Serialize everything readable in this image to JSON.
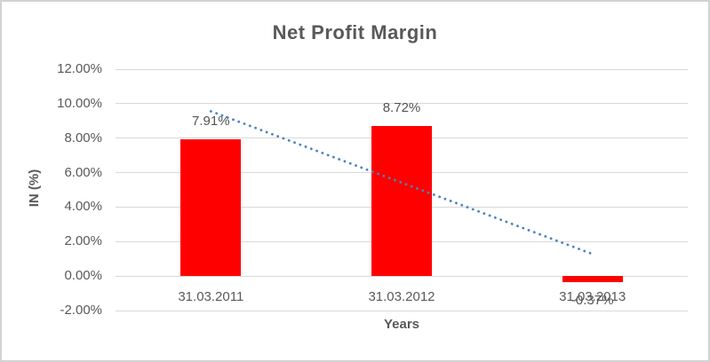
{
  "chart_data": {
    "type": "bar",
    "title": "Net Profit Margin",
    "xlabel": "Years",
    "ylabel": "IN (%)",
    "categories": [
      "31.03.2011",
      "31.03.2012",
      "31.03.2013"
    ],
    "values": [
      7.91,
      8.72,
      -0.37
    ],
    "data_labels": [
      "7.91%",
      "8.72%",
      "-0.37%"
    ],
    "ylim": [
      -2,
      12
    ],
    "y_ticks": [
      {
        "value": 12,
        "label": "12.00%"
      },
      {
        "value": 10,
        "label": "10.00%"
      },
      {
        "value": 8,
        "label": "8.00%"
      },
      {
        "value": 6,
        "label": "6.00%"
      },
      {
        "value": 4,
        "label": "4.00%"
      },
      {
        "value": 2,
        "label": "2.00%"
      },
      {
        "value": 0,
        "label": "0.00%"
      },
      {
        "value": -2,
        "label": "-2.00%"
      }
    ],
    "grid": true,
    "legend": "none",
    "trendline": {
      "type": "linear",
      "style": "dotted",
      "start_value": 9.56,
      "end_value": 1.28,
      "start_category_index": 0,
      "end_category_index": 2
    },
    "colors": {
      "bar": "#ff0000",
      "trendline": "#4e81bd",
      "gridline": "#d9d9d9",
      "axis_text": "#595959",
      "title_text": "#595959",
      "data_label_text": "#545454",
      "frame_border": "#d2d2d2",
      "background": "#ffffff"
    }
  }
}
